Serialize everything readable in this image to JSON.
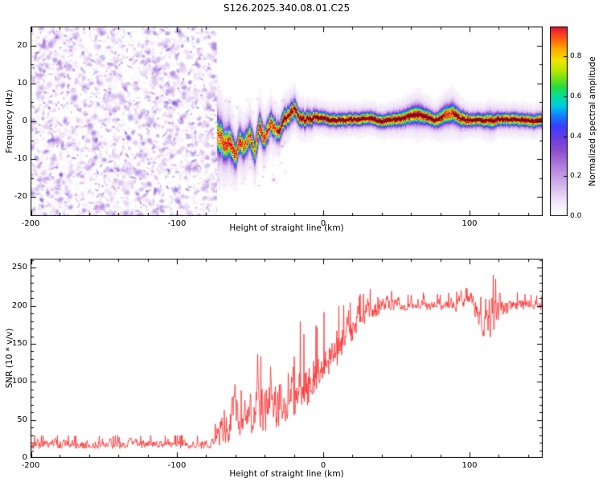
{
  "figure": {
    "title": "S126.2025.340.08.01.C25"
  },
  "chart_data": [
    {
      "type": "heatmap",
      "title": "S126.2025.340.08.01.C25",
      "xlabel": "Height of straight line (km)",
      "ylabel": "Frequency (Hz)",
      "xlim": [
        -200,
        150
      ],
      "ylim": [
        -25,
        25
      ],
      "xticks": [
        -200,
        -100,
        0,
        100
      ],
      "yticks": [
        -20,
        -10,
        0,
        10,
        20
      ],
      "colorbar": {
        "label": "Normalized spectral amplitude",
        "ticks": [
          0.0,
          0.2,
          0.4,
          0.6,
          0.8
        ],
        "range": [
          0,
          0.95
        ],
        "stops": [
          [
            0.0,
            "#ffffff"
          ],
          [
            0.06,
            "#f6eefa"
          ],
          [
            0.15,
            "#d8baee"
          ],
          [
            0.25,
            "#b280de"
          ],
          [
            0.33,
            "#8c50d0"
          ],
          [
            0.4,
            "#643ce6"
          ],
          [
            0.45,
            "#3c3cff"
          ],
          [
            0.5,
            "#1478ff"
          ],
          [
            0.55,
            "#00c8e6"
          ],
          [
            0.6,
            "#00e1a0"
          ],
          [
            0.65,
            "#28dc3c"
          ],
          [
            0.72,
            "#aae600"
          ],
          [
            0.78,
            "#f0e600"
          ],
          [
            0.84,
            "#ffaa00"
          ],
          [
            0.9,
            "#ff5014"
          ],
          [
            0.95,
            "#e1143c"
          ],
          [
            1.0,
            "#be003c"
          ]
        ]
      },
      "noise_region": {
        "x_range": [
          -200,
          -72
        ],
        "amplitude_range": [
          0.05,
          0.4
        ],
        "description": "speckled low-amplitude purple noise covering all frequencies"
      },
      "signal_band": {
        "x_range": [
          -72,
          150
        ],
        "x": [
          -72,
          -68,
          -64,
          -60,
          -57,
          -54,
          -50,
          -47,
          -44,
          -40,
          -36,
          -32,
          -28,
          -24,
          -20,
          -17,
          -12,
          -6,
          0,
          10,
          20,
          30,
          40,
          50,
          58,
          64,
          70,
          76,
          82,
          88,
          94,
          100,
          108,
          114,
          120,
          130,
          140,
          150
        ],
        "center_hz": [
          -3,
          -6,
          -4,
          -9,
          -5,
          -7,
          -4,
          -8,
          -2,
          -4,
          -1,
          -3,
          0,
          2,
          4,
          1,
          0,
          1,
          0.5,
          0.5,
          0.5,
          0.5,
          0.5,
          1,
          1.5,
          2,
          1,
          0,
          1.5,
          2,
          1,
          0.5,
          0.5,
          0,
          0.5,
          0.5,
          0.5,
          0.5
        ],
        "halfwidth_hz": [
          6,
          5,
          5,
          4,
          4,
          4,
          4,
          4,
          4,
          3.5,
          3.5,
          3,
          3,
          3,
          3,
          2.5,
          2.5,
          2.2,
          2,
          2,
          2,
          2,
          2,
          2.2,
          2.5,
          3,
          2.5,
          2.2,
          2.8,
          3,
          2.5,
          2,
          2,
          2.5,
          2,
          2,
          2,
          2
        ],
        "peak_amplitude": [
          0.85,
          0.9,
          0.9,
          0.85,
          0.9,
          0.8,
          0.9,
          0.7,
          0.9,
          0.9,
          0.9,
          0.9,
          0.95,
          0.95,
          0.9,
          0.95,
          0.95,
          0.95,
          0.97,
          0.97,
          0.97,
          0.97,
          0.97,
          0.97,
          0.95,
          0.9,
          0.95,
          0.95,
          0.9,
          0.9,
          0.95,
          0.97,
          0.95,
          0.9,
          0.95,
          0.97,
          0.97,
          0.97
        ]
      }
    },
    {
      "type": "line",
      "xlabel": "Height of straight line (km)",
      "ylabel": "SNR (10 * v/v)",
      "xlim": [
        -200,
        150
      ],
      "ylim": [
        0,
        262
      ],
      "xticks": [
        -200,
        -100,
        0,
        100
      ],
      "yticks": [
        0,
        50,
        100,
        150,
        200,
        250
      ],
      "line_color": "#ff2020",
      "envelope": {
        "x": [
          -200,
          -190,
          -180,
          -170,
          -160,
          -150,
          -140,
          -130,
          -120,
          -110,
          -100,
          -90,
          -80,
          -75,
          -72,
          -68,
          -64,
          -60,
          -56,
          -52,
          -48,
          -44,
          -40,
          -36,
          -32,
          -28,
          -24,
          -20,
          -16,
          -12,
          -8,
          -4,
          0,
          4,
          8,
          12,
          16,
          20,
          25,
          30,
          35,
          40,
          50,
          60,
          70,
          80,
          90,
          100,
          105,
          110,
          115,
          120,
          130,
          140,
          150
        ],
        "lo": [
          12,
          12,
          12,
          12,
          12,
          12,
          12,
          12,
          12,
          12,
          12,
          12,
          12,
          13,
          15,
          18,
          20,
          22,
          25,
          28,
          30,
          32,
          35,
          38,
          40,
          42,
          45,
          55,
          65,
          60,
          80,
          85,
          100,
          110,
          115,
          130,
          145,
          155,
          170,
          180,
          185,
          190,
          192,
          194,
          194,
          194,
          192,
          194,
          180,
          150,
          145,
          185,
          194,
          195,
          195
        ],
        "hi": [
          30,
          30,
          30,
          30,
          30,
          30,
          30,
          30,
          30,
          30,
          30,
          30,
          30,
          35,
          60,
          110,
          100,
          145,
          90,
          150,
          120,
          150,
          120,
          165,
          120,
          150,
          178,
          150,
          185,
          160,
          195,
          170,
          195,
          185,
          200,
          200,
          210,
          205,
          215,
          220,
          235,
          225,
          220,
          215,
          220,
          215,
          220,
          225,
          240,
          255,
          250,
          230,
          220,
          215,
          215
        ]
      }
    }
  ]
}
